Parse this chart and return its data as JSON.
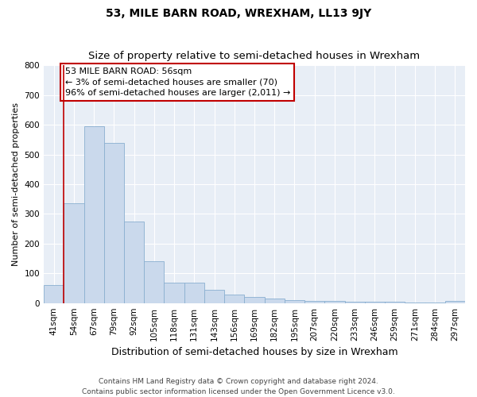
{
  "title": "53, MILE BARN ROAD, WREXHAM, LL13 9JY",
  "subtitle": "Size of property relative to semi-detached houses in Wrexham",
  "xlabel": "Distribution of semi-detached houses by size in Wrexham",
  "ylabel": "Number of semi-detached properties",
  "categories": [
    "41sqm",
    "54sqm",
    "67sqm",
    "79sqm",
    "92sqm",
    "105sqm",
    "118sqm",
    "131sqm",
    "143sqm",
    "156sqm",
    "169sqm",
    "182sqm",
    "195sqm",
    "207sqm",
    "220sqm",
    "233sqm",
    "246sqm",
    "259sqm",
    "271sqm",
    "284sqm",
    "297sqm"
  ],
  "values": [
    60,
    335,
    595,
    540,
    275,
    140,
    68,
    68,
    45,
    28,
    20,
    14,
    10,
    8,
    6,
    5,
    4,
    4,
    3,
    1,
    6
  ],
  "bar_color": "#cad9ec",
  "bar_edge_color": "#8aafd0",
  "vline_color": "#c00000",
  "vline_position": 1.5,
  "annotation_text": "53 MILE BARN ROAD: 56sqm\n← 3% of semi-detached houses are smaller (70)\n96% of semi-detached houses are larger (2,011) →",
  "annotation_box_color": "#c00000",
  "ylim": [
    0,
    800
  ],
  "yticks": [
    0,
    100,
    200,
    300,
    400,
    500,
    600,
    700,
    800
  ],
  "background_color": "#e8eef6",
  "footer": "Contains HM Land Registry data © Crown copyright and database right 2024.\nContains public sector information licensed under the Open Government Licence v3.0.",
  "title_fontsize": 10,
  "subtitle_fontsize": 9.5,
  "xlabel_fontsize": 9,
  "ylabel_fontsize": 8,
  "tick_fontsize": 7.5,
  "annotation_fontsize": 8,
  "footer_fontsize": 6.5
}
